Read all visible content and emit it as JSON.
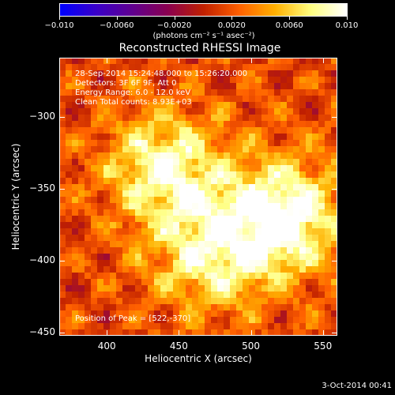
{
  "chart_data": {
    "type": "heatmap",
    "title": "Reconstructed RHESSI Image",
    "xlabel": "Heliocentric X (arcsec)",
    "ylabel": "Heliocentric Y (arcsec)",
    "xlim": [
      367,
      560
    ],
    "ylim": [
      -452,
      -259
    ],
    "x_ticks": [
      400,
      450,
      500,
      550
    ],
    "y_ticks": [
      -300,
      -350,
      -400,
      -450
    ],
    "x_tick_labels": [
      "400",
      "450",
      "500",
      "550"
    ],
    "y_tick_labels": [
      "−300",
      "−350",
      "−400",
      "−450"
    ],
    "colorbar": {
      "min": -0.01,
      "max": 0.01,
      "ticks": [
        -0.01,
        -0.006,
        -0.002,
        0.002,
        0.006,
        0.01
      ],
      "tick_labels": [
        "−0.010",
        "−0.0060",
        "−0.0020",
        "0.0020",
        "0.0060",
        "0.010"
      ],
      "unit_label": "(photons cm⁻² s⁻¹ asec⁻²)",
      "colormap": [
        "#0000ff",
        "#3a00c8",
        "#600090",
        "#8a0050",
        "#c02000",
        "#ff6000",
        "#ffb000",
        "#ffff80",
        "#ffffff"
      ]
    },
    "peaks": [
      {
        "x": 522,
        "y": -370,
        "value": 0.0095
      },
      {
        "x": 440,
        "y": -335,
        "value": 0.0075
      },
      {
        "x": 470,
        "y": -395,
        "value": 0.0065
      }
    ],
    "annotations": [
      "28-Sep-2014 15:24:48.000 to 15:26:20.000",
      "Detectors: 3F 6F 9F, Att 0",
      "Energy Range: 6.0 - 12.0 keV",
      "Clean    Total counts: 8.93E+03"
    ],
    "peak_label": "Position of Peak = [522,-370]"
  },
  "datestamp": "3-Oct-2014 00:41"
}
